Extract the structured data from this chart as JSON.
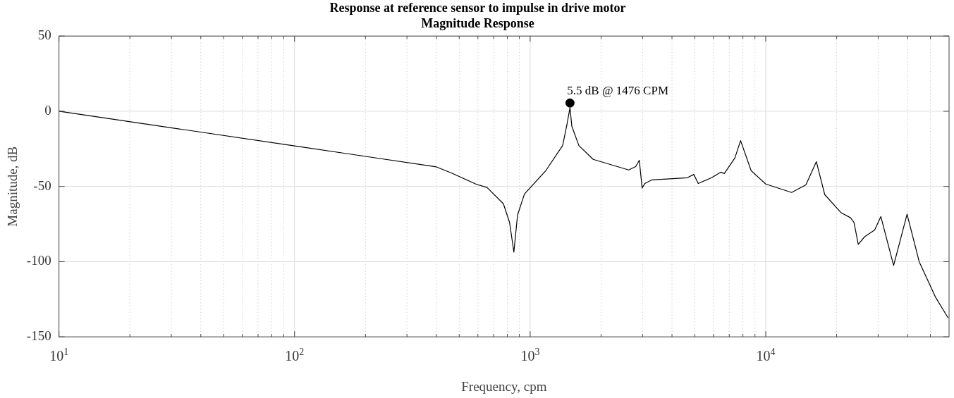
{
  "chart_data": {
    "type": "line",
    "title": "Response at reference sensor to impulse in drive motor",
    "subtitle": "Magnitude Response",
    "xlabel": "Frequency, cpm",
    "ylabel": "Magnitude, dB",
    "log": "x",
    "grid": true,
    "legend": false,
    "line_style": "solid",
    "xlim": [
      10,
      60000
    ],
    "ylim": [
      -150,
      50
    ],
    "xticks": [
      {
        "value": 10,
        "label": "10$^{1}$"
      },
      {
        "value": 20,
        "label": null
      },
      {
        "value": 30,
        "label": null
      },
      {
        "value": 40,
        "label": null
      },
      {
        "value": 50,
        "label": null
      },
      {
        "value": 60,
        "label": null
      },
      {
        "value": 70,
        "label": null
      },
      {
        "value": 80,
        "label": null
      },
      {
        "value": 90,
        "label": null
      },
      {
        "value": 100,
        "label": "10$^{2}$"
      },
      {
        "value": 200,
        "label": null
      },
      {
        "value": 300,
        "label": null
      },
      {
        "value": 400,
        "label": null
      },
      {
        "value": 500,
        "label": null
      },
      {
        "value": 600,
        "label": null
      },
      {
        "value": 700,
        "label": null
      },
      {
        "value": 800,
        "label": null
      },
      {
        "value": 900,
        "label": null
      },
      {
        "value": 1000,
        "label": "10$^{3}$"
      },
      {
        "value": 2000,
        "label": null
      },
      {
        "value": 3000,
        "label": null
      },
      {
        "value": 4000,
        "label": null
      },
      {
        "value": 5000,
        "label": null
      },
      {
        "value": 6000,
        "label": null
      },
      {
        "value": 7000,
        "label": null
      },
      {
        "value": 8000,
        "label": null
      },
      {
        "value": 9000,
        "label": null
      },
      {
        "value": 10000,
        "label": "10$^{4}$"
      },
      {
        "value": 20000,
        "label": null
      },
      {
        "value": 30000,
        "label": null
      },
      {
        "value": 40000,
        "label": null
      },
      {
        "value": 50000,
        "label": null
      }
    ],
    "yticks": [
      -150,
      -100,
      -50,
      0,
      50
    ],
    "series": [
      {
        "color": "#000000",
        "marker": "none",
        "x": [
          10,
          100,
          200,
          400,
          463,
          590,
          656,
          770,
          818,
          853,
          884,
          946,
          1165,
          1374,
          1433,
          1476,
          1503,
          1610,
          1852,
          2618,
          2806,
          2906,
          2987,
          3070,
          3290,
          4650,
          4950,
          5170,
          5890,
          6440,
          6670,
          7400,
          7820,
          8670,
          10000,
          12880,
          14800,
          16400,
          17800,
          20900,
          22900,
          23700,
          24700,
          26300,
          29000,
          30800,
          34900,
          39800,
          44800,
          52500,
          59500
        ],
        "values": [
          0,
          -23,
          -30,
          -37,
          -41,
          -48.5,
          -50.7,
          -61.5,
          -74,
          -93.7,
          -69,
          -55,
          -39.5,
          -22.8,
          -8.8,
          2.4,
          -10,
          -22.8,
          -32,
          -39,
          -36.8,
          -32.6,
          -51,
          -48,
          -45.6,
          -44.2,
          -42,
          -48,
          -44.2,
          -40.5,
          -41.4,
          -31,
          -19.5,
          -39.5,
          -48.4,
          -54,
          -49,
          -33.5,
          -55.4,
          -67.5,
          -70.8,
          -74,
          -88.5,
          -83.4,
          -79,
          -70,
          -102.5,
          -68.5,
          -100,
          -123.5,
          -137.5
        ]
      },
      {
        "type": "scatter",
        "color": "#000000",
        "marker": "circle",
        "x": [
          1476
        ],
        "values": [
          5.5
        ]
      }
    ],
    "annotations": [
      {
        "text": "5.5 dB @ 1476 CPM",
        "x": 1476,
        "y": 5.5
      }
    ]
  }
}
